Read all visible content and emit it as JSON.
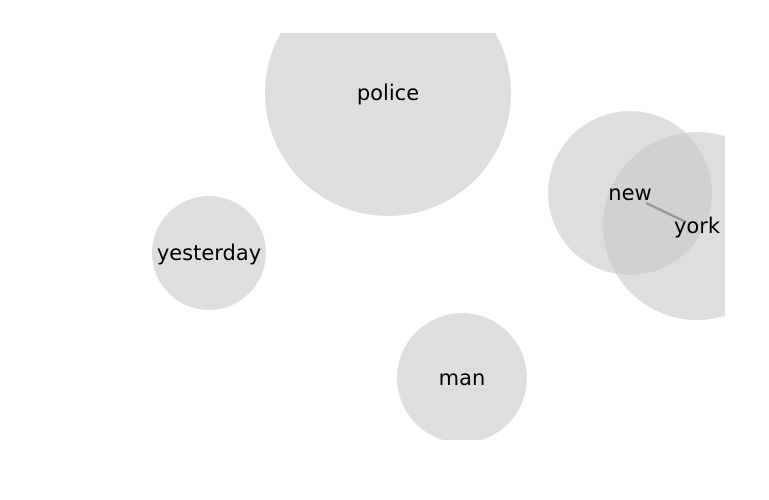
{
  "diagram": {
    "type": "word-bubble-network",
    "bubble_color": "#c8c8c8",
    "link_color": "#999999",
    "nodes": [
      {
        "id": "police",
        "label": "police"
      },
      {
        "id": "new",
        "label": "new"
      },
      {
        "id": "york",
        "label": "york"
      },
      {
        "id": "yesterday",
        "label": "yesterday"
      },
      {
        "id": "man",
        "label": "man"
      }
    ],
    "links": [
      {
        "source": "new",
        "target": "york"
      }
    ]
  }
}
